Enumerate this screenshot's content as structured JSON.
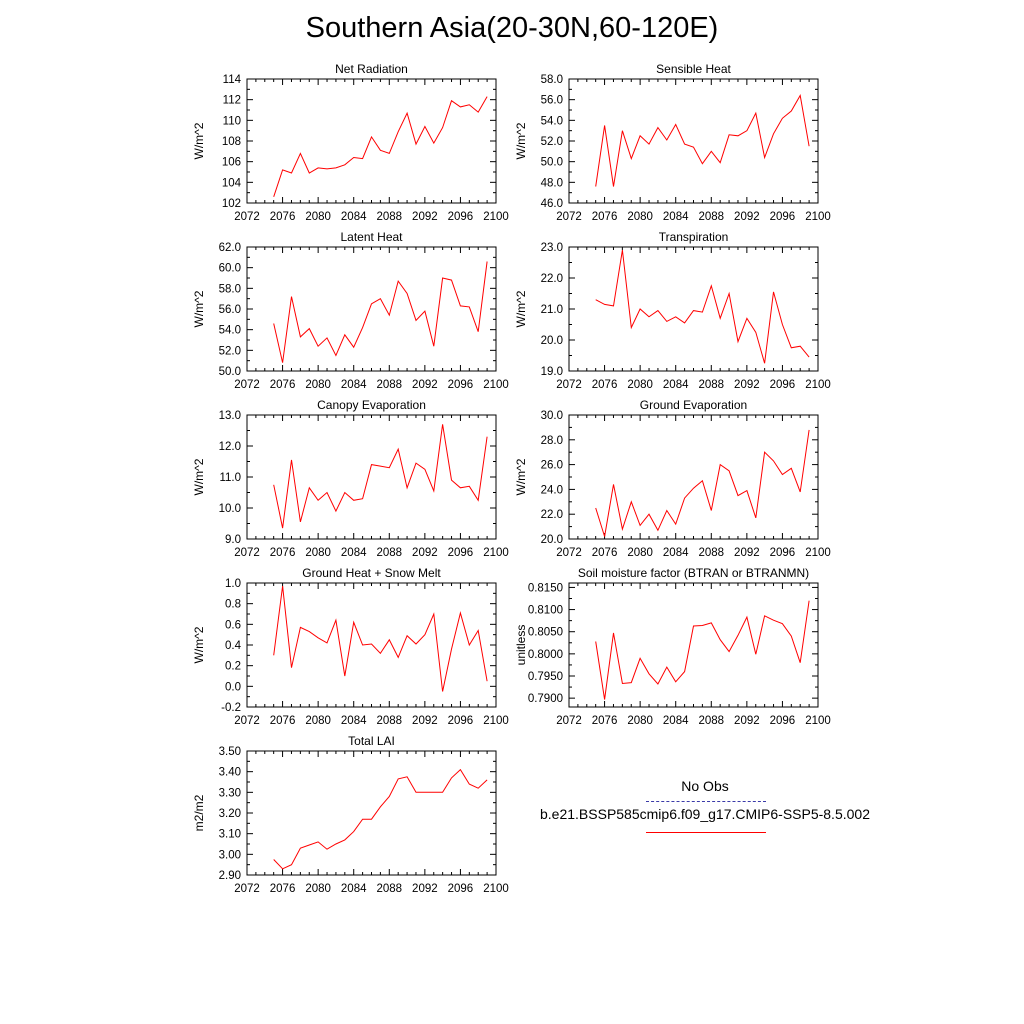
{
  "title": "Southern Asia(20-30N,60-120E)",
  "colors": {
    "series": "#ff0000",
    "obs": "#3a3aa8",
    "axis": "#000000"
  },
  "legend": {
    "obs_label": "No Obs",
    "model_label": "b.e21.BSSP585cmip6.f09_g17.CMIP6-SSP5-8.5.002"
  },
  "chart_data": [
    {
      "type": "line",
      "title": "Net Radiation",
      "ylabel": "W/m^2",
      "xlim": [
        2072,
        2100
      ],
      "ylim": [
        102,
        114
      ],
      "xticks": [
        2072,
        2076,
        2080,
        2084,
        2088,
        2092,
        2096,
        2100
      ],
      "yticks": [
        "102",
        "104",
        "106",
        "108",
        "110",
        "112",
        "114"
      ],
      "x": [
        2075,
        2076,
        2077,
        2078,
        2079,
        2080,
        2081,
        2082,
        2083,
        2084,
        2085,
        2086,
        2087,
        2088,
        2089,
        2090,
        2091,
        2092,
        2093,
        2094,
        2095,
        2096,
        2097,
        2098,
        2099
      ],
      "y": [
        102.6,
        105.2,
        104.9,
        106.8,
        104.9,
        105.4,
        105.3,
        105.4,
        105.7,
        106.4,
        106.3,
        108.4,
        107.1,
        106.8,
        108.9,
        110.7,
        107.7,
        109.4,
        107.8,
        109.3,
        111.9,
        111.3,
        111.5,
        110.8,
        112.3
      ]
    },
    {
      "type": "line",
      "title": "Sensible Heat",
      "ylabel": "W/m^2",
      "xlim": [
        2072,
        2100
      ],
      "ylim": [
        46,
        58
      ],
      "xticks": [
        2072,
        2076,
        2080,
        2084,
        2088,
        2092,
        2096,
        2100
      ],
      "yticks": [
        "46.0",
        "48.0",
        "50.0",
        "52.0",
        "54.0",
        "56.0",
        "58.0"
      ],
      "x": [
        2075,
        2076,
        2077,
        2078,
        2079,
        2080,
        2081,
        2082,
        2083,
        2084,
        2085,
        2086,
        2087,
        2088,
        2089,
        2090,
        2091,
        2092,
        2093,
        2094,
        2095,
        2096,
        2097,
        2098,
        2099
      ],
      "y": [
        47.6,
        53.5,
        47.6,
        53.0,
        50.3,
        52.5,
        51.7,
        53.3,
        52.1,
        53.6,
        51.7,
        51.4,
        49.8,
        51.0,
        49.9,
        52.6,
        52.5,
        53.0,
        54.7,
        50.4,
        52.7,
        54.2,
        54.9,
        56.4,
        51.5
      ]
    },
    {
      "type": "line",
      "title": "Latent Heat",
      "ylabel": "W/m^2",
      "xlim": [
        2072,
        2100
      ],
      "ylim": [
        50,
        62
      ],
      "xticks": [
        2072,
        2076,
        2080,
        2084,
        2088,
        2092,
        2096,
        2100
      ],
      "yticks": [
        "50.0",
        "52.0",
        "54.0",
        "56.0",
        "58.0",
        "60.0",
        "62.0"
      ],
      "x": [
        2075,
        2076,
        2077,
        2078,
        2079,
        2080,
        2081,
        2082,
        2083,
        2084,
        2085,
        2086,
        2087,
        2088,
        2089,
        2090,
        2091,
        2092,
        2093,
        2094,
        2095,
        2096,
        2097,
        2098,
        2099
      ],
      "y": [
        54.6,
        50.8,
        57.2,
        53.3,
        54.1,
        52.4,
        53.2,
        51.5,
        53.5,
        52.3,
        54.2,
        56.5,
        57.0,
        55.4,
        58.7,
        57.5,
        54.9,
        55.8,
        52.4,
        59.0,
        58.8,
        56.3,
        56.2,
        53.8,
        60.6
      ]
    },
    {
      "type": "line",
      "title": "Transpiration",
      "ylabel": "W/m^2",
      "xlim": [
        2072,
        2100
      ],
      "ylim": [
        19,
        23
      ],
      "xticks": [
        2072,
        2076,
        2080,
        2084,
        2088,
        2092,
        2096,
        2100
      ],
      "yticks": [
        "19.0",
        "20.0",
        "21.0",
        "22.0",
        "23.0"
      ],
      "x": [
        2075,
        2076,
        2077,
        2078,
        2079,
        2080,
        2081,
        2082,
        2083,
        2084,
        2085,
        2086,
        2087,
        2088,
        2089,
        2090,
        2091,
        2092,
        2093,
        2094,
        2095,
        2096,
        2097,
        2098,
        2099
      ],
      "y": [
        21.3,
        21.15,
        21.1,
        22.9,
        20.4,
        21.0,
        20.75,
        20.95,
        20.6,
        20.75,
        20.55,
        20.95,
        20.9,
        21.75,
        20.7,
        21.5,
        19.95,
        20.7,
        20.25,
        19.25,
        21.55,
        20.5,
        19.75,
        19.8,
        19.45
      ]
    },
    {
      "type": "line",
      "title": "Canopy Evaporation",
      "ylabel": "W/m^2",
      "xlim": [
        2072,
        2100
      ],
      "ylim": [
        9,
        13
      ],
      "xticks": [
        2072,
        2076,
        2080,
        2084,
        2088,
        2092,
        2096,
        2100
      ],
      "yticks": [
        "9.0",
        "10.0",
        "11.0",
        "12.0",
        "13.0"
      ],
      "x": [
        2075,
        2076,
        2077,
        2078,
        2079,
        2080,
        2081,
        2082,
        2083,
        2084,
        2085,
        2086,
        2087,
        2088,
        2089,
        2090,
        2091,
        2092,
        2093,
        2094,
        2095,
        2096,
        2097,
        2098,
        2099
      ],
      "y": [
        10.75,
        9.35,
        11.55,
        9.55,
        10.65,
        10.25,
        10.5,
        9.9,
        10.5,
        10.25,
        10.3,
        11.4,
        11.35,
        11.3,
        11.9,
        10.65,
        11.45,
        11.25,
        10.55,
        12.7,
        10.9,
        10.65,
        10.7,
        10.25,
        12.3
      ]
    },
    {
      "type": "line",
      "title": "Ground Evaporation",
      "ylabel": "W/m^2",
      "xlim": [
        2072,
        2100
      ],
      "ylim": [
        20,
        30
      ],
      "xticks": [
        2072,
        2076,
        2080,
        2084,
        2088,
        2092,
        2096,
        2100
      ],
      "yticks": [
        "20.0",
        "22.0",
        "24.0",
        "26.0",
        "28.0",
        "30.0"
      ],
      "x": [
        2075,
        2076,
        2077,
        2078,
        2079,
        2080,
        2081,
        2082,
        2083,
        2084,
        2085,
        2086,
        2087,
        2088,
        2089,
        2090,
        2091,
        2092,
        2093,
        2094,
        2095,
        2096,
        2097,
        2098,
        2099
      ],
      "y": [
        22.5,
        20.2,
        24.4,
        20.8,
        23.0,
        21.1,
        22.0,
        20.7,
        22.3,
        21.2,
        23.3,
        24.1,
        24.7,
        22.3,
        26.0,
        25.5,
        23.5,
        23.9,
        21.7,
        27.0,
        26.3,
        25.2,
        25.7,
        23.8,
        28.8
      ]
    },
    {
      "type": "line",
      "title": "Ground Heat + Snow Melt",
      "ylabel": "W/m^2",
      "xlim": [
        2072,
        2100
      ],
      "ylim": [
        -0.2,
        1.0
      ],
      "xticks": [
        2072,
        2076,
        2080,
        2084,
        2088,
        2092,
        2096,
        2100
      ],
      "yticks": [
        "-0.2",
        "0.0",
        "0.2",
        "0.4",
        "0.6",
        "0.8",
        "1.0"
      ],
      "x": [
        2075,
        2076,
        2077,
        2078,
        2079,
        2080,
        2081,
        2082,
        2083,
        2084,
        2085,
        2086,
        2087,
        2088,
        2089,
        2090,
        2091,
        2092,
        2093,
        2094,
        2095,
        2096,
        2097,
        2098,
        2099
      ],
      "y": [
        0.3,
        0.97,
        0.18,
        0.57,
        0.53,
        0.47,
        0.42,
        0.64,
        0.1,
        0.62,
        0.4,
        0.41,
        0.32,
        0.45,
        0.28,
        0.49,
        0.41,
        0.5,
        0.7,
        -0.05,
        0.36,
        0.71,
        0.4,
        0.54,
        0.05
      ]
    },
    {
      "type": "line",
      "title": "Soil moisture factor (BTRAN or BTRANMN)",
      "ylabel": "unitless",
      "xlim": [
        2072,
        2100
      ],
      "ylim": [
        0.788,
        0.816
      ],
      "xticks": [
        2072,
        2076,
        2080,
        2084,
        2088,
        2092,
        2096,
        2100
      ],
      "yticks": [
        "0.7900",
        "0.7950",
        "0.8000",
        "0.8050",
        "0.8100",
        "0.8150"
      ],
      "ytick_values": [
        0.79,
        0.795,
        0.8,
        0.805,
        0.81,
        0.815
      ],
      "x": [
        2075,
        2076,
        2077,
        2078,
        2079,
        2080,
        2081,
        2082,
        2083,
        2084,
        2085,
        2086,
        2087,
        2088,
        2089,
        2090,
        2091,
        2092,
        2093,
        2094,
        2095,
        2096,
        2097,
        2098,
        2099
      ],
      "y": [
        0.8028,
        0.7897,
        0.8047,
        0.7933,
        0.7935,
        0.799,
        0.7955,
        0.7932,
        0.797,
        0.7937,
        0.796,
        0.8063,
        0.8064,
        0.807,
        0.8032,
        0.8005,
        0.8042,
        0.8083,
        0.7999,
        0.8086,
        0.8076,
        0.8068,
        0.804,
        0.798,
        0.812
      ]
    },
    {
      "type": "line",
      "title": "Total LAI",
      "ylabel": "m2/m2",
      "xlim": [
        2072,
        2100
      ],
      "ylim": [
        2.9,
        3.5
      ],
      "xticks": [
        2072,
        2076,
        2080,
        2084,
        2088,
        2092,
        2096,
        2100
      ],
      "yticks": [
        "2.90",
        "3.00",
        "3.10",
        "3.20",
        "3.30",
        "3.40",
        "3.50"
      ],
      "x": [
        2075,
        2076,
        2077,
        2078,
        2079,
        2080,
        2081,
        2082,
        2083,
        2084,
        2085,
        2086,
        2087,
        2088,
        2089,
        2090,
        2091,
        2092,
        2093,
        2094,
        2095,
        2096,
        2097,
        2098,
        2099
      ],
      "y": [
        2.975,
        2.93,
        2.95,
        3.03,
        3.045,
        3.06,
        3.025,
        3.05,
        3.07,
        3.11,
        3.17,
        3.17,
        3.23,
        3.28,
        3.365,
        3.375,
        3.3,
        3.3,
        3.3,
        3.3,
        3.37,
        3.41,
        3.34,
        3.32,
        3.36
      ]
    }
  ]
}
